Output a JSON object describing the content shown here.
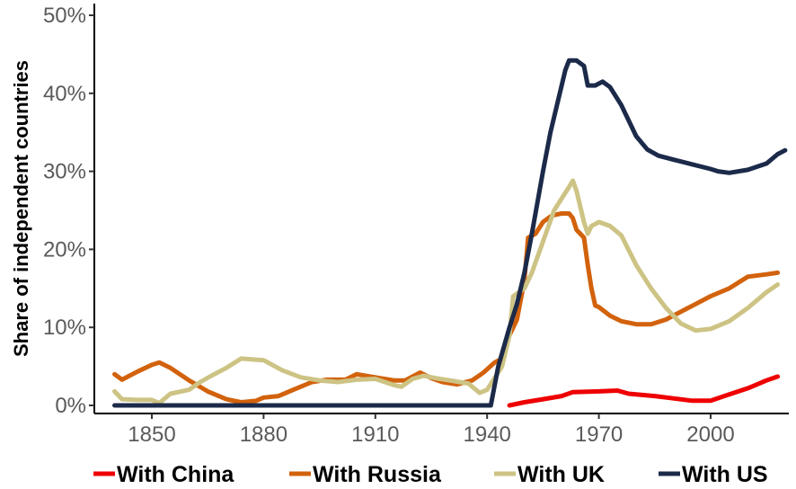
{
  "chart_data": {
    "type": "line",
    "ylabel": "Share of independent countries",
    "xlabel": "",
    "xlim": [
      1838,
      2022
    ],
    "ylim": [
      -0.5,
      50
    ],
    "x_ticks": [
      1850,
      1880,
      1910,
      1940,
      1970,
      2000
    ],
    "y_ticks": [
      0,
      10,
      20,
      30,
      40,
      50
    ],
    "y_tick_labels": [
      "0%",
      "10%",
      "20%",
      "30%",
      "40%",
      "50%"
    ],
    "grid": false,
    "legend_position": "bottom",
    "series": [
      {
        "name": "With China",
        "color": "#ee0000",
        "points": [
          [
            1946,
            0
          ],
          [
            1950,
            0.4
          ],
          [
            1955,
            0.8
          ],
          [
            1960,
            1.2
          ],
          [
            1963,
            1.7
          ],
          [
            1970,
            1.8
          ],
          [
            1975,
            1.9
          ],
          [
            1978,
            1.5
          ],
          [
            1985,
            1.2
          ],
          [
            1990,
            0.9
          ],
          [
            1995,
            0.6
          ],
          [
            2000,
            0.6
          ],
          [
            2005,
            1.4
          ],
          [
            2010,
            2.2
          ],
          [
            2015,
            3.2
          ],
          [
            2018,
            3.7
          ]
        ]
      },
      {
        "name": "With Russia",
        "color": "#d2620c",
        "points": [
          [
            1840,
            4
          ],
          [
            1842,
            3.3
          ],
          [
            1846,
            4.3
          ],
          [
            1850,
            5.2
          ],
          [
            1852,
            5.5
          ],
          [
            1855,
            4.8
          ],
          [
            1860,
            3.2
          ],
          [
            1865,
            1.8
          ],
          [
            1870,
            0.8
          ],
          [
            1874,
            0.4
          ],
          [
            1878,
            0.6
          ],
          [
            1880,
            1
          ],
          [
            1884,
            1.2
          ],
          [
            1888,
            2
          ],
          [
            1893,
            3
          ],
          [
            1897,
            3.3
          ],
          [
            1902,
            3.3
          ],
          [
            1905,
            4
          ],
          [
            1910,
            3.6
          ],
          [
            1915,
            3.2
          ],
          [
            1918,
            3.2
          ],
          [
            1922,
            4.2
          ],
          [
            1925,
            3.5
          ],
          [
            1928,
            3
          ],
          [
            1932,
            2.7
          ],
          [
            1936,
            3.2
          ],
          [
            1939,
            4.2
          ],
          [
            1942,
            5.5
          ],
          [
            1944,
            6
          ],
          [
            1946,
            9
          ],
          [
            1948,
            11
          ],
          [
            1950,
            16
          ],
          [
            1951,
            21.5
          ],
          [
            1953,
            22
          ],
          [
            1955,
            23.5
          ],
          [
            1957,
            24.2
          ],
          [
            1958,
            24.4
          ],
          [
            1960,
            24.6
          ],
          [
            1962,
            24.6
          ],
          [
            1963,
            24
          ],
          [
            1964,
            22.5
          ],
          [
            1966,
            21.5
          ],
          [
            1967,
            18
          ],
          [
            1968,
            15
          ],
          [
            1969,
            12.8
          ],
          [
            1970,
            12.6
          ],
          [
            1973,
            11.5
          ],
          [
            1976,
            10.8
          ],
          [
            1980,
            10.4
          ],
          [
            1984,
            10.4
          ],
          [
            1988,
            11
          ],
          [
            1992,
            12
          ],
          [
            1996,
            13
          ],
          [
            2000,
            14
          ],
          [
            2005,
            15
          ],
          [
            2010,
            16.5
          ],
          [
            2015,
            16.8
          ],
          [
            2018,
            17
          ]
        ]
      },
      {
        "name": "With UK",
        "color": "#cdc384",
        "points": [
          [
            1840,
            1.8
          ],
          [
            1842,
            0.8
          ],
          [
            1846,
            0.7
          ],
          [
            1850,
            0.7
          ],
          [
            1852,
            0.3
          ],
          [
            1855,
            1.5
          ],
          [
            1860,
            2
          ],
          [
            1863,
            3
          ],
          [
            1866,
            3.8
          ],
          [
            1870,
            4.8
          ],
          [
            1874,
            6
          ],
          [
            1880,
            5.8
          ],
          [
            1885,
            4.5
          ],
          [
            1890,
            3.6
          ],
          [
            1895,
            3.2
          ],
          [
            1900,
            3
          ],
          [
            1905,
            3.3
          ],
          [
            1910,
            3.4
          ],
          [
            1915,
            2.6
          ],
          [
            1917,
            2.4
          ],
          [
            1920,
            3.4
          ],
          [
            1923,
            3.8
          ],
          [
            1926,
            3.5
          ],
          [
            1930,
            3.2
          ],
          [
            1935,
            2.8
          ],
          [
            1938,
            1.6
          ],
          [
            1940,
            2
          ],
          [
            1942,
            3.5
          ],
          [
            1944,
            5
          ],
          [
            1946,
            9
          ],
          [
            1947,
            14
          ],
          [
            1950,
            15
          ],
          [
            1952,
            17
          ],
          [
            1955,
            21
          ],
          [
            1958,
            25
          ],
          [
            1960,
            26.5
          ],
          [
            1962,
            28
          ],
          [
            1963,
            28.8
          ],
          [
            1964,
            27.5
          ],
          [
            1966,
            23.5
          ],
          [
            1967,
            22
          ],
          [
            1968,
            23
          ],
          [
            1970,
            23.5
          ],
          [
            1973,
            23
          ],
          [
            1976,
            21.8
          ],
          [
            1980,
            18
          ],
          [
            1984,
            15
          ],
          [
            1988,
            12.5
          ],
          [
            1992,
            10.5
          ],
          [
            1996,
            9.6
          ],
          [
            2000,
            9.8
          ],
          [
            2005,
            10.8
          ],
          [
            2010,
            12.5
          ],
          [
            2015,
            14.5
          ],
          [
            2018,
            15.5
          ]
        ]
      },
      {
        "name": "With US",
        "color": "#1c2a4a",
        "points": [
          [
            1840,
            0
          ],
          [
            1900,
            0
          ],
          [
            1941,
            0
          ],
          [
            1943,
            5
          ],
          [
            1946,
            10
          ],
          [
            1948,
            13
          ],
          [
            1950,
            17
          ],
          [
            1952,
            22
          ],
          [
            1955,
            30
          ],
          [
            1957,
            35
          ],
          [
            1959,
            39
          ],
          [
            1961,
            43
          ],
          [
            1962,
            44.2
          ],
          [
            1964,
            44.2
          ],
          [
            1966,
            43.5
          ],
          [
            1967,
            41
          ],
          [
            1969,
            41
          ],
          [
            1971,
            41.5
          ],
          [
            1973,
            40.8
          ],
          [
            1976,
            38.5
          ],
          [
            1980,
            34.5
          ],
          [
            1983,
            32.8
          ],
          [
            1986,
            32
          ],
          [
            1990,
            31.5
          ],
          [
            1995,
            30.9
          ],
          [
            2000,
            30.3
          ],
          [
            2002,
            30
          ],
          [
            2005,
            29.8
          ],
          [
            2010,
            30.2
          ],
          [
            2015,
            31
          ],
          [
            2018,
            32.2
          ],
          [
            2020,
            32.7
          ]
        ]
      }
    ]
  }
}
